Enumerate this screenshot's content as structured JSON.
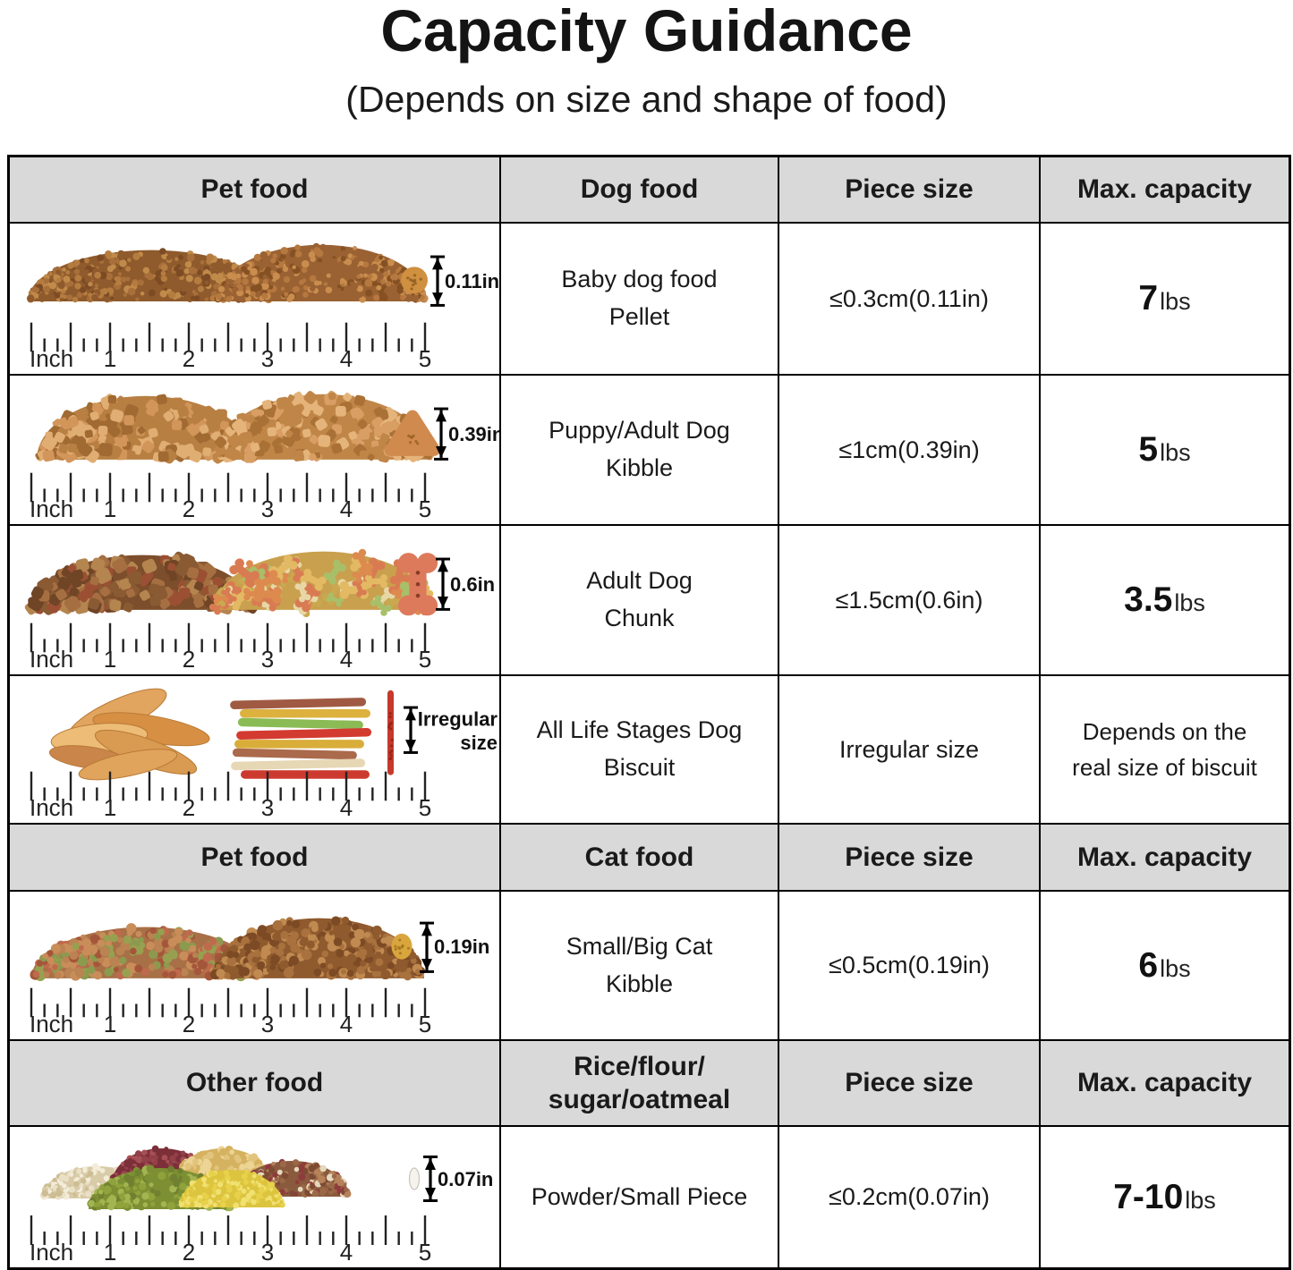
{
  "page": {
    "title": "Capacity Guidance",
    "subtitle": "(Depends on size and shape of food)"
  },
  "ruler": {
    "unit": "Inch",
    "marks": [
      "1",
      "2",
      "3",
      "4",
      "5"
    ]
  },
  "headers": [
    {
      "col1": "Pet food",
      "col2": "Dog food",
      "col3": "Piece size",
      "col4": "Max. capacity"
    },
    {
      "col1": "Pet food",
      "col2": "Cat food",
      "col3": "Piece size",
      "col4": "Max. capacity"
    },
    {
      "col1": "Other food",
      "col2_line1": "Rice/flour/",
      "col2_line2": "sugar/oatmeal",
      "col3": "Piece size",
      "col4": "Max. capacity"
    }
  ],
  "rows": [
    {
      "food_line1": "Baby dog food",
      "food_line2": "Pellet",
      "piece_size": "≤0.3cm(0.11in)",
      "capacity_value": "7",
      "capacity_unit": "lbs",
      "measure_label": "0.11in"
    },
    {
      "food_line1": "Puppy/Adult Dog",
      "food_line2": "Kibble",
      "piece_size": "≤1cm(0.39in)",
      "capacity_value": "5",
      "capacity_unit": "lbs",
      "measure_label": "0.39in"
    },
    {
      "food_line1": "Adult Dog",
      "food_line2": "Chunk",
      "piece_size": "≤1.5cm(0.6in)",
      "capacity_value": "3.5",
      "capacity_unit": "lbs",
      "measure_label": "0.6in"
    },
    {
      "food_line1": "All Life Stages Dog",
      "food_line2": "Biscuit",
      "piece_size": "Irregular size",
      "capacity_line1": "Depends on the",
      "capacity_line2": "real size of biscuit",
      "measure_line1": "Irregular",
      "measure_line2": "size"
    },
    {
      "food_line1": "Small/Big Cat",
      "food_line2": "Kibble",
      "piece_size": "≤0.5cm(0.19in)",
      "capacity_value": "6",
      "capacity_unit": "lbs",
      "measure_label": "0.19in"
    },
    {
      "food_line1": "Powder/Small Piece",
      "food_line2": "",
      "piece_size": "≤0.2cm(0.07in)",
      "capacity_value": "7-10",
      "capacity_unit": "lbs",
      "measure_label": "0.07in"
    }
  ]
}
